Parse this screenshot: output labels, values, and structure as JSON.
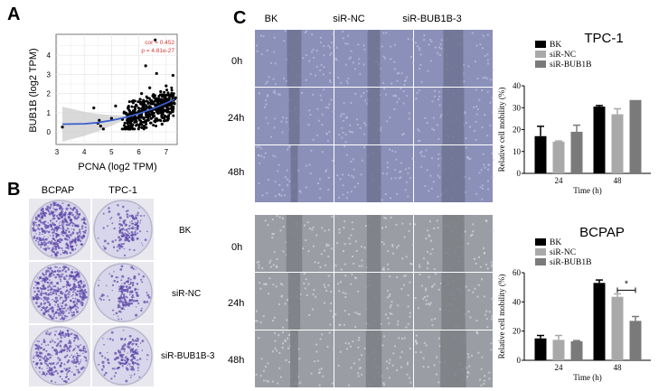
{
  "panels": {
    "a": "A",
    "b": "B",
    "c": "C"
  },
  "panel_b": {
    "col_headers": [
      "BCPAP",
      "TPC-1"
    ],
    "row_labels": [
      "BK",
      "siR-NC",
      "siR-BUB1B-3"
    ]
  },
  "panel_c": {
    "col_headers": [
      "BK",
      "siR-NC",
      "siR-BUB1B-3"
    ],
    "row_labels": [
      "0h",
      "24h",
      "48h"
    ]
  },
  "colors": {
    "bk": "#000000",
    "nc": "#a9a9a9",
    "bub": "#7a7a7a",
    "fit": "#3a5fcd",
    "stat": "#d23a3a"
  },
  "chart_data": [
    {
      "type": "scatter",
      "title": "",
      "xlabel": "PCNA (log2 TPM)",
      "ylabel": "BUB1B (log2 TPM)",
      "xlim": [
        3,
        7.4
      ],
      "ylim": [
        -0.7,
        4.9
      ],
      "xticks": [
        "3",
        "4",
        "5",
        "6",
        "7"
      ],
      "yticks": [
        "0",
        "1",
        "2",
        "3",
        "4"
      ],
      "annotations": [
        "cor = 0.452",
        "p = 4.81e-27"
      ],
      "points_sample": [
        [
          3.2,
          0.25
        ],
        [
          4.35,
          1.25
        ],
        [
          4.5,
          0.45
        ],
        [
          4.55,
          0.6
        ],
        [
          4.6,
          0.3
        ],
        [
          4.7,
          0.15
        ],
        [
          5.0,
          0.7
        ],
        [
          5.15,
          1.35
        ],
        [
          5.4,
          0.65
        ],
        [
          5.5,
          0.2
        ],
        [
          5.6,
          0.9
        ],
        [
          5.7,
          0.5
        ],
        [
          5.8,
          1.1
        ],
        [
          5.9,
          1.4
        ],
        [
          6.0,
          0.8
        ],
        [
          6.05,
          1.7
        ],
        [
          6.1,
          2.0
        ],
        [
          6.2,
          1.2
        ],
        [
          6.25,
          3.45
        ],
        [
          6.3,
          0.6
        ],
        [
          6.35,
          1.5
        ],
        [
          6.4,
          2.3
        ],
        [
          6.5,
          1.0
        ],
        [
          6.55,
          1.8
        ],
        [
          6.6,
          4.8
        ],
        [
          6.65,
          3.05
        ],
        [
          6.7,
          1.3
        ],
        [
          6.8,
          2.1
        ],
        [
          6.85,
          0.4
        ],
        [
          6.9,
          1.6
        ],
        [
          7.0,
          2.4
        ],
        [
          7.05,
          1.1
        ],
        [
          7.1,
          1.9
        ],
        [
          7.25,
          2.95
        ],
        [
          7.3,
          1.5
        ]
      ],
      "fit_curve": [
        [
          3.2,
          0.4
        ],
        [
          4.0,
          0.42
        ],
        [
          4.5,
          0.48
        ],
        [
          5.0,
          0.6
        ],
        [
          5.5,
          0.75
        ],
        [
          6.0,
          0.95
        ],
        [
          6.5,
          1.2
        ],
        [
          7.0,
          1.5
        ],
        [
          7.3,
          1.7
        ]
      ]
    },
    {
      "type": "bar",
      "title": "TPC-1",
      "xlabel": "Time (h)",
      "ylabel": "Relative cell mobility (%)",
      "categories": [
        "24",
        "48"
      ],
      "ylim": [
        0,
        40
      ],
      "yticks": [
        "0",
        "10",
        "20",
        "30",
        "40"
      ],
      "legend": "top-left",
      "series": [
        {
          "name": "BK",
          "values": [
            17,
            30.5
          ],
          "errors": [
            4.5,
            0.5
          ]
        },
        {
          "name": "siR-NC",
          "values": [
            14.5,
            27
          ],
          "errors": [
            0.3,
            2.5
          ]
        },
        {
          "name": "siR-BUB1B",
          "values": [
            19,
            33.5
          ],
          "errors": [
            3,
            0
          ]
        }
      ]
    },
    {
      "type": "bar",
      "title": "BCPAP",
      "xlabel": "Time (h)",
      "ylabel": "Relative cell mobility (%)",
      "categories": [
        "24",
        "48"
      ],
      "ylim": [
        0,
        60
      ],
      "yticks": [
        "0",
        "20",
        "40",
        "60"
      ],
      "legend": "top-left",
      "significance": {
        "label": "*",
        "between": [
          "siR-NC",
          "siR-BUB1B"
        ],
        "category": "48"
      },
      "series": [
        {
          "name": "BK",
          "values": [
            15,
            53
          ],
          "errors": [
            2,
            2
          ]
        },
        {
          "name": "siR-NC",
          "values": [
            14,
            43.5
          ],
          "errors": [
            3,
            2
          ]
        },
        {
          "name": "siR-BUB1B",
          "values": [
            13,
            27
          ],
          "errors": [
            0.5,
            3
          ]
        }
      ]
    }
  ]
}
